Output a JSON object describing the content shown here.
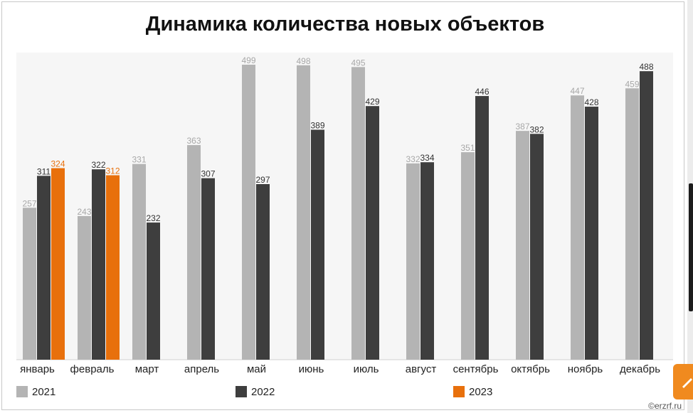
{
  "title": "Динамика количества новых объектов",
  "watermark": "©erzrf.ru",
  "colors": {
    "s2021": "#b4b4b4",
    "s2022": "#3e3e3e",
    "s2023": "#e8700c",
    "plot_bg": "#f6f6f6"
  },
  "legend": [
    {
      "name": "2021",
      "color": "#b4b4b4"
    },
    {
      "name": "2022",
      "color": "#3e3e3e"
    },
    {
      "name": "2023",
      "color": "#e8700c"
    }
  ],
  "chart_data": {
    "type": "bar",
    "title": "Динамика количества новых объектов",
    "xlabel": "",
    "ylabel": "",
    "ylim": [
      0,
      520
    ],
    "grid": false,
    "legend_position": "bottom",
    "categories": [
      "январь",
      "февраль",
      "март",
      "апрель",
      "май",
      "июнь",
      "июль",
      "август",
      "сентябрь",
      "октябрь",
      "ноябрь",
      "декабрь"
    ],
    "series": [
      {
        "name": "2021",
        "values": [
          257,
          243,
          331,
          363,
          499,
          498,
          495,
          332,
          351,
          387,
          447,
          459
        ]
      },
      {
        "name": "2022",
        "values": [
          311,
          322,
          232,
          307,
          297,
          389,
          429,
          334,
          446,
          382,
          428,
          488
        ]
      },
      {
        "name": "2023",
        "values": [
          324,
          312,
          null,
          null,
          null,
          null,
          null,
          null,
          null,
          null,
          null,
          null
        ]
      }
    ]
  }
}
